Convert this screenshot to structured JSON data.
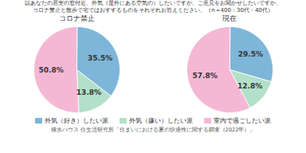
{
  "title": "以あなたの居室の窓付近、外気（屋外にある空気の）したいですか。ご意見をお聞かせしたいですか。",
  "subtitle": "コロナ禁止と散歩で宅ではおすするものをそれぞれお答えください。（n＝400：30代・40代）",
  "annotations": [
    "積水ハウス 住生活研究所「住まいにおける夏の快適性に関する調査（2022年）」"
  ],
  "chart_data": [
    {
      "type": "pie",
      "title": "コロナ禁止",
      "categories": [
        "外気（好き）したい派",
        "外気（嫌い）したい派",
        "室内で過ごしたい派"
      ],
      "values": [
        35.5,
        13.8,
        50.8
      ],
      "value_labels": [
        "35.5%",
        "13.8%",
        "50.8%"
      ],
      "colors": [
        "#7eb6d9",
        "#b3e0c8",
        "#f4b8d4"
      ],
      "data_labels": true,
      "legend": "bottom"
    },
    {
      "type": "pie",
      "title": "現在",
      "categories": [
        "外気（好き）したい派",
        "外気（嫌い）したい派",
        "室内で過ごしたい派"
      ],
      "values": [
        29.5,
        12.8,
        57.8
      ],
      "value_labels": [
        "29.5%",
        "12.8%",
        "57.8%"
      ],
      "colors": [
        "#7eb6d9",
        "#b3e0c8",
        "#f4b8d4"
      ],
      "data_labels": true,
      "legend": "bottom"
    }
  ]
}
